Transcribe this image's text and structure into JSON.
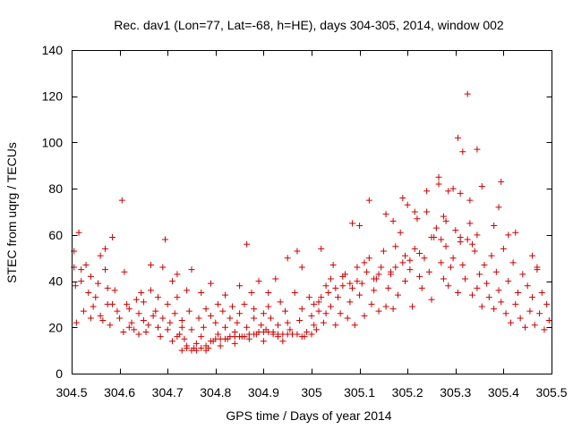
{
  "chart_data": {
    "type": "scatter",
    "title": "Rec. dav1 (Lon=77, Lat=-68, h=HE), days 304-305, 2014, window 002",
    "xlabel": "GPS time / Days of year 2014",
    "ylabel": "STEC from uqrg / TECUs",
    "xlim": [
      304.5,
      305.5
    ],
    "ylim": [
      0,
      140
    ],
    "x_ticks": [
      304.5,
      304.6,
      304.7,
      304.8,
      304.9,
      305,
      305.1,
      305.2,
      305.3,
      305.4,
      305.5
    ],
    "x_tick_labels": [
      "304.5",
      "304.6",
      "304.7",
      "304.8",
      "304.9",
      "305",
      "305.1",
      "305.2",
      "305.3",
      "305.4",
      "305.5"
    ],
    "y_ticks": [
      0,
      20,
      40,
      60,
      80,
      100,
      120,
      140
    ],
    "y_tick_labels": [
      "0",
      "20",
      "40",
      "60",
      "80",
      "100",
      "120",
      "140"
    ],
    "marker": "plus",
    "color": "#cc0000",
    "grid": false,
    "series": [
      {
        "name": "STEC",
        "points": [
          [
            304.505,
            53
          ],
          [
            304.505,
            46
          ],
          [
            304.508,
            38
          ],
          [
            304.51,
            22
          ],
          [
            304.515,
            61
          ],
          [
            304.52,
            45
          ],
          [
            304.52,
            40
          ],
          [
            304.525,
            27
          ],
          [
            304.53,
            47
          ],
          [
            304.535,
            35
          ],
          [
            304.54,
            24
          ],
          [
            304.54,
            42
          ],
          [
            304.545,
            29
          ],
          [
            304.55,
            33
          ],
          [
            304.555,
            39
          ],
          [
            304.56,
            51
          ],
          [
            304.56,
            25
          ],
          [
            304.565,
            23
          ],
          [
            304.57,
            54
          ],
          [
            304.57,
            45
          ],
          [
            304.575,
            30
          ],
          [
            304.575,
            37
          ],
          [
            304.58,
            21
          ],
          [
            304.585,
            59
          ],
          [
            304.585,
            30
          ],
          [
            304.59,
            36
          ],
          [
            304.595,
            27
          ],
          [
            304.6,
            24
          ],
          [
            304.605,
            75
          ],
          [
            304.608,
            18
          ],
          [
            304.61,
            44
          ],
          [
            304.615,
            30
          ],
          [
            304.62,
            20
          ],
          [
            304.62,
            28
          ],
          [
            304.625,
            22
          ],
          [
            304.63,
            19
          ],
          [
            304.635,
            32
          ],
          [
            304.64,
            26
          ],
          [
            304.64,
            17
          ],
          [
            304.645,
            35
          ],
          [
            304.65,
            23
          ],
          [
            304.65,
            31
          ],
          [
            304.655,
            18
          ],
          [
            304.66,
            21
          ],
          [
            304.665,
            36
          ],
          [
            304.665,
            47
          ],
          [
            304.67,
            25
          ],
          [
            304.675,
            27
          ],
          [
            304.68,
            20
          ],
          [
            304.68,
            33
          ],
          [
            304.685,
            16
          ],
          [
            304.69,
            46
          ],
          [
            304.69,
            24
          ],
          [
            304.695,
            58
          ],
          [
            304.7,
            30
          ],
          [
            304.7,
            19
          ],
          [
            304.705,
            22
          ],
          [
            304.71,
            40
          ],
          [
            304.71,
            14
          ],
          [
            304.715,
            26
          ],
          [
            304.72,
            43
          ],
          [
            304.72,
            33
          ],
          [
            304.725,
            17
          ],
          [
            304.73,
            20
          ],
          [
            304.73,
            23
          ],
          [
            304.735,
            15
          ],
          [
            304.74,
            36
          ],
          [
            304.74,
            12
          ],
          [
            304.745,
            27
          ],
          [
            304.75,
            45
          ],
          [
            304.75,
            19
          ],
          [
            304.755,
            11
          ],
          [
            304.76,
            13
          ],
          [
            304.765,
            24
          ],
          [
            304.77,
            35
          ],
          [
            304.77,
            16
          ],
          [
            304.775,
            20
          ],
          [
            304.78,
            28
          ],
          [
            304.78,
            10
          ],
          [
            304.785,
            11
          ],
          [
            304.79,
            39
          ],
          [
            304.79,
            25
          ],
          [
            304.795,
            14
          ],
          [
            304.8,
            22
          ],
          [
            304.805,
            30
          ],
          [
            304.805,
            17
          ],
          [
            304.81,
            12
          ],
          [
            304.815,
            27
          ],
          [
            304.82,
            20
          ],
          [
            304.82,
            34
          ],
          [
            304.825,
            15
          ],
          [
            304.83,
            24
          ],
          [
            304.835,
            29
          ],
          [
            304.84,
            13
          ],
          [
            304.84,
            18
          ],
          [
            304.845,
            22
          ],
          [
            304.85,
            38
          ],
          [
            304.85,
            26
          ],
          [
            304.855,
            16
          ],
          [
            304.86,
            30
          ],
          [
            304.865,
            56
          ],
          [
            304.865,
            20
          ],
          [
            304.87,
            15
          ],
          [
            304.875,
            35
          ],
          [
            304.88,
            24
          ],
          [
            304.88,
            28
          ],
          [
            304.885,
            17
          ],
          [
            304.89,
            40
          ],
          [
            304.895,
            21
          ],
          [
            304.9,
            14
          ],
          [
            304.9,
            26
          ],
          [
            304.905,
            19
          ],
          [
            304.91,
            35
          ],
          [
            304.91,
            29
          ],
          [
            304.915,
            24
          ],
          [
            304.92,
            18
          ],
          [
            304.925,
            41
          ],
          [
            304.93,
            21
          ],
          [
            304.93,
            16
          ],
          [
            304.935,
            31
          ],
          [
            304.94,
            14
          ],
          [
            304.945,
            27
          ],
          [
            304.95,
            50
          ],
          [
            304.95,
            22
          ],
          [
            304.955,
            19
          ],
          [
            304.96,
            17
          ],
          [
            304.965,
            35
          ],
          [
            304.97,
            53
          ],
          [
            304.975,
            23
          ],
          [
            304.98,
            28
          ],
          [
            304.98,
            46
          ],
          [
            304.985,
            16
          ],
          [
            304.99,
            18
          ],
          [
            304.995,
            33
          ],
          [
            305.0,
            17
          ],
          [
            305.0,
            25
          ],
          [
            305.005,
            21
          ],
          [
            305.01,
            19
          ],
          [
            305.015,
            31
          ],
          [
            305.02,
            54
          ],
          [
            305.025,
            22
          ],
          [
            305.03,
            26
          ],
          [
            305.035,
            35
          ],
          [
            305.04,
            29
          ],
          [
            305.045,
            47
          ],
          [
            305.05,
            21
          ],
          [
            305.055,
            33
          ],
          [
            305.06,
            26
          ],
          [
            305.065,
            38
          ],
          [
            305.07,
            43
          ],
          [
            305.075,
            24
          ],
          [
            305.08,
            31
          ],
          [
            305.085,
            37
          ],
          [
            305.09,
            21
          ],
          [
            305.095,
            46
          ],
          [
            305.1,
            34
          ],
          [
            305.105,
            39
          ],
          [
            305.11,
            25
          ],
          [
            305.115,
            44
          ],
          [
            305.12,
            50
          ],
          [
            305.125,
            30
          ],
          [
            305.13,
            36
          ],
          [
            305.135,
            41
          ],
          [
            305.14,
            27
          ],
          [
            305.145,
            46
          ],
          [
            305.15,
            53
          ],
          [
            305.155,
            29
          ],
          [
            305.16,
            37
          ],
          [
            305.165,
            43
          ],
          [
            305.17,
            28
          ],
          [
            305.175,
            55
          ],
          [
            305.18,
            34
          ],
          [
            305.185,
            61
          ],
          [
            305.19,
            48
          ],
          [
            305.195,
            40
          ],
          [
            305.2,
            73
          ],
          [
            305.205,
            45
          ],
          [
            305.21,
            29
          ],
          [
            305.215,
            54
          ],
          [
            305.22,
            67
          ],
          [
            305.225,
            42
          ],
          [
            305.23,
            37
          ],
          [
            305.235,
            50
          ],
          [
            305.24,
            70
          ],
          [
            305.245,
            44
          ],
          [
            305.25,
            32
          ],
          [
            305.255,
            59
          ],
          [
            305.26,
            63
          ],
          [
            305.265,
            82
          ],
          [
            305.27,
            48
          ],
          [
            305.275,
            41
          ],
          [
            305.28,
            55
          ],
          [
            305.285,
            38
          ],
          [
            305.29,
            46
          ],
          [
            305.295,
            50
          ],
          [
            305.3,
            62
          ],
          [
            305.305,
            35
          ],
          [
            305.31,
            57
          ],
          [
            305.315,
            47
          ],
          [
            305.32,
            41
          ],
          [
            305.325,
            58
          ],
          [
            305.33,
            65
          ],
          [
            305.335,
            34
          ],
          [
            305.34,
            53
          ],
          [
            305.345,
            37
          ],
          [
            305.35,
            43
          ],
          [
            305.355,
            29
          ],
          [
            305.36,
            47
          ],
          [
            305.365,
            39
          ],
          [
            305.37,
            33
          ],
          [
            305.375,
            51
          ],
          [
            305.38,
            28
          ],
          [
            305.385,
            44
          ],
          [
            305.39,
            36
          ],
          [
            305.395,
            31
          ],
          [
            305.4,
            54
          ],
          [
            305.405,
            26
          ],
          [
            305.41,
            40
          ],
          [
            305.415,
            22
          ],
          [
            305.42,
            48
          ],
          [
            305.425,
            30
          ],
          [
            305.43,
            35
          ],
          [
            305.435,
            24
          ],
          [
            305.44,
            43
          ],
          [
            305.445,
            20
          ],
          [
            305.45,
            38
          ],
          [
            305.455,
            27
          ],
          [
            305.46,
            33
          ],
          [
            305.465,
            21
          ],
          [
            305.47,
            46
          ],
          [
            305.475,
            26
          ],
          [
            305.48,
            35
          ],
          [
            305.485,
            19
          ],
          [
            305.49,
            30
          ],
          [
            305.495,
            23
          ],
          [
            305.305,
            102
          ],
          [
            305.325,
            121
          ],
          [
            305.345,
            97
          ],
          [
            305.315,
            96
          ],
          [
            305.355,
            81
          ],
          [
            305.31,
            78
          ],
          [
            305.33,
            75
          ],
          [
            305.295,
            80
          ],
          [
            305.285,
            79
          ],
          [
            305.24,
            79
          ],
          [
            305.215,
            70
          ],
          [
            305.19,
            76
          ],
          [
            305.17,
            66
          ],
          [
            305.155,
            69
          ],
          [
            305.12,
            75
          ],
          [
            305.1,
            64
          ],
          [
            305.085,
            65
          ],
          [
            305.265,
            85
          ],
          [
            305.275,
            68
          ],
          [
            305.28,
            66
          ],
          [
            305.395,
            83
          ],
          [
            305.39,
            72
          ],
          [
            305.38,
            64
          ],
          [
            305.41,
            60
          ],
          [
            305.425,
            61
          ],
          [
            305.46,
            51
          ],
          [
            305.47,
            45
          ],
          [
            305.345,
            60
          ],
          [
            305.335,
            56
          ],
          [
            305.31,
            59
          ],
          [
            305.25,
            59
          ],
          [
            305.27,
            58
          ],
          [
            305.195,
            51
          ],
          [
            305.205,
            49
          ],
          [
            305.225,
            52
          ],
          [
            305.175,
            46
          ],
          [
            305.165,
            44
          ],
          [
            305.14,
            43
          ],
          [
            305.13,
            41
          ],
          [
            305.11,
            48
          ],
          [
            305.095,
            40
          ],
          [
            305.08,
            39
          ],
          [
            305.065,
            42
          ],
          [
            305.05,
            37
          ],
          [
            305.04,
            41
          ],
          [
            305.03,
            38
          ],
          [
            305.02,
            33
          ],
          [
            305.015,
            27
          ],
          [
            305.005,
            30
          ],
          [
            304.72,
            16
          ],
          [
            304.73,
            10
          ],
          [
            304.74,
            11
          ],
          [
            304.75,
            10
          ],
          [
            304.76,
            10
          ],
          [
            304.77,
            11
          ],
          [
            304.78,
            12
          ],
          [
            304.79,
            14
          ],
          [
            304.8,
            15
          ],
          [
            304.81,
            15
          ],
          [
            304.82,
            15
          ],
          [
            304.83,
            16
          ],
          [
            304.84,
            16
          ],
          [
            304.85,
            16
          ],
          [
            304.86,
            16
          ],
          [
            304.87,
            17
          ],
          [
            304.88,
            17
          ],
          [
            304.89,
            18
          ],
          [
            304.9,
            18
          ],
          [
            304.91,
            18
          ],
          [
            304.92,
            17
          ],
          [
            304.93,
            17
          ],
          [
            304.94,
            17
          ],
          [
            304.95,
            17
          ],
          [
            304.96,
            17
          ],
          [
            304.97,
            17
          ],
          [
            304.98,
            16
          ]
        ]
      }
    ]
  }
}
